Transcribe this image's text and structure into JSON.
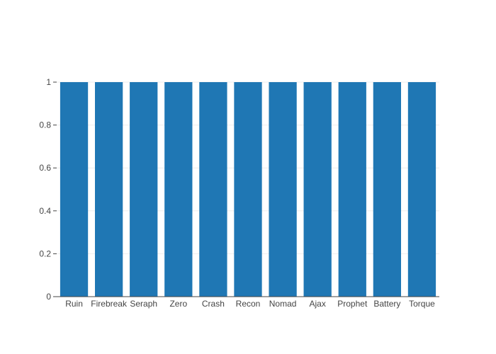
{
  "chart_data": {
    "type": "bar",
    "categories": [
      "Ruin",
      "Firebreak",
      "Seraph",
      "Zero",
      "Crash",
      "Recon",
      "Nomad",
      "Ajax",
      "Prophet",
      "Battery",
      "Torque"
    ],
    "values": [
      1,
      1,
      1,
      1,
      1,
      1,
      1,
      1,
      1,
      1,
      1
    ],
    "title": "",
    "xlabel": "",
    "ylabel": "",
    "ylim": [
      0,
      1
    ],
    "yticks": [
      0,
      0.2,
      0.4,
      0.6,
      0.8,
      1
    ],
    "ytick_labels": [
      "0",
      "0.2",
      "0.4",
      "0.6",
      "0.8",
      "1"
    ],
    "grid": true,
    "colors": {
      "bar": "#1f77b4",
      "grid": "#eeeeee",
      "axis": "#444444",
      "text": "#444444"
    }
  }
}
